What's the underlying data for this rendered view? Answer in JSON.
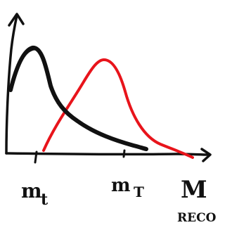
{
  "diagram": {
    "labels": {
      "m_t": {
        "main": "m",
        "subscript": "t"
      },
      "m_T": {
        "main": "m",
        "subscript": "T"
      },
      "M_reco": {
        "main": "M",
        "subscript": "RECO"
      }
    },
    "colors": {
      "axes": "#111111",
      "black_curve": "#111111",
      "red_curve": "#e8141b"
    }
  }
}
